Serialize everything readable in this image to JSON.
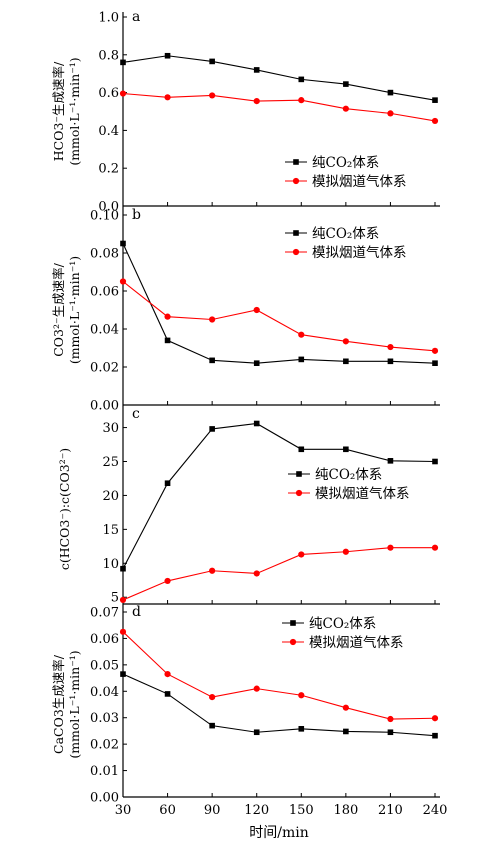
{
  "chart_data": [
    {
      "panel": "a",
      "type": "line",
      "x": [
        30,
        60,
        90,
        120,
        150,
        180,
        210,
        240
      ],
      "ylim": [
        0.0,
        1.0
      ],
      "yticks": [
        "0.0",
        "0.2",
        "0.4",
        "0.6",
        "0.8",
        "1.0"
      ],
      "ylabel": [
        "HCO3⁻生成速率/",
        "(mmol·L⁻¹·min⁻¹)"
      ],
      "legend_position": "bottom-right",
      "series": [
        {
          "name": "纯CO₂体系",
          "color": "#000000",
          "marker": "square",
          "values": [
            0.76,
            0.795,
            0.765,
            0.72,
            0.67,
            0.645,
            0.6,
            0.56
          ]
        },
        {
          "name": "模拟烟道气体系",
          "color": "#ff0000",
          "marker": "circle",
          "values": [
            0.595,
            0.575,
            0.585,
            0.555,
            0.56,
            0.515,
            0.49,
            0.45
          ]
        }
      ]
    },
    {
      "panel": "b",
      "type": "line",
      "x": [
        30,
        60,
        90,
        120,
        150,
        180,
        210,
        240
      ],
      "ylim": [
        0.0,
        0.1
      ],
      "yticks": [
        "0.00",
        "0.02",
        "0.04",
        "0.06",
        "0.08",
        "0.10"
      ],
      "ylabel": [
        "CO3²⁻生成速率/",
        "(mmol·L⁻¹·min⁻¹)"
      ],
      "legend_position": "top-right",
      "series": [
        {
          "name": "纯CO₂体系",
          "color": "#000000",
          "marker": "square",
          "values": [
            0.085,
            0.034,
            0.0235,
            0.022,
            0.024,
            0.023,
            0.023,
            0.022
          ]
        },
        {
          "name": "模拟烟道气体系",
          "color": "#ff0000",
          "marker": "circle",
          "values": [
            0.065,
            0.0465,
            0.045,
            0.05,
            0.037,
            0.0335,
            0.0305,
            0.0285
          ]
        }
      ]
    },
    {
      "panel": "c",
      "type": "line",
      "x": [
        30,
        60,
        90,
        120,
        150,
        180,
        210,
        240
      ],
      "ylim": [
        4.0,
        32.0
      ],
      "yticks": [
        "5",
        "10",
        "15",
        "20",
        "25",
        "30"
      ],
      "ylabel": [
        "c(HCO3⁻):c(CO3²⁻)"
      ],
      "legend_position": "middle-right",
      "series": [
        {
          "name": "纯CO₂体系",
          "color": "#000000",
          "marker": "square",
          "values": [
            9.2,
            21.8,
            29.8,
            30.6,
            26.8,
            26.8,
            25.1,
            25.0
          ]
        },
        {
          "name": "模拟烟道气体系",
          "color": "#ff0000",
          "marker": "circle",
          "values": [
            4.6,
            7.4,
            8.9,
            8.5,
            11.3,
            11.7,
            12.3,
            12.3
          ]
        }
      ]
    },
    {
      "panel": "d",
      "type": "line",
      "x": [
        30,
        60,
        90,
        120,
        150,
        180,
        210,
        240
      ],
      "ylim": [
        0.0,
        0.07
      ],
      "yticks": [
        "0.00",
        "0.01",
        "0.02",
        "0.03",
        "0.04",
        "0.05",
        "0.06",
        "0.07"
      ],
      "ylabel": [
        "CaCO3生成速率/",
        "(mmol·L⁻¹·min⁻¹)"
      ],
      "legend_position": "top-right",
      "xlabel": "时间/min",
      "xticks": [
        "30",
        "60",
        "90",
        "120",
        "150",
        "180",
        "210",
        "240"
      ],
      "series": [
        {
          "name": "纯CO₂体系",
          "color": "#000000",
          "marker": "square",
          "values": [
            0.0465,
            0.039,
            0.027,
            0.0245,
            0.0258,
            0.0248,
            0.0245,
            0.0232
          ]
        },
        {
          "name": "模拟烟道气体系",
          "color": "#ff0000",
          "marker": "circle",
          "values": [
            0.0625,
            0.0465,
            0.0378,
            0.041,
            0.0385,
            0.0338,
            0.0295,
            0.0298
          ]
        }
      ]
    }
  ]
}
